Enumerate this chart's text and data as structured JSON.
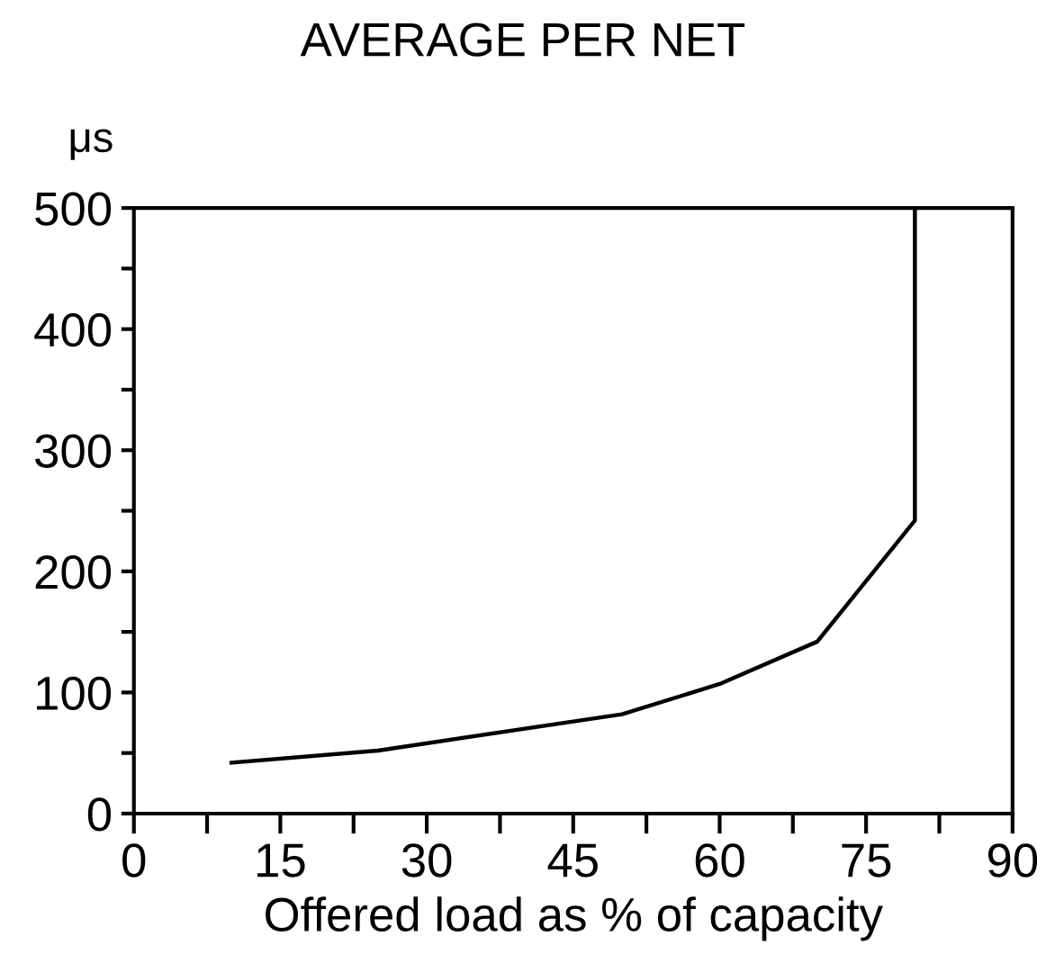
{
  "chart_data": {
    "type": "line",
    "title": "AVERAGE PER NET",
    "ylabel": "μs",
    "xlabel": "Offered load as % of capacity",
    "x": [
      10,
      25,
      50,
      60,
      70,
      80,
      80
    ],
    "series": [
      {
        "color": "#000000",
        "values": [
          42,
          52,
          82,
          107,
          142,
          242,
          500
        ]
      }
    ],
    "xlim": [
      0,
      90
    ],
    "ylim": [
      0,
      500
    ],
    "xticks": [
      0,
      {
        "value": 7.5,
        "label": null
      },
      15,
      {
        "value": 22.5,
        "label": null
      },
      30,
      {
        "value": 37.5,
        "label": null
      },
      45,
      {
        "value": 52.5,
        "label": null
      },
      60,
      {
        "value": 67.5,
        "label": null
      },
      75,
      {
        "value": 82.5,
        "label": null
      },
      90
    ],
    "yticks": [
      0,
      {
        "value": 50,
        "label": null
      },
      100,
      {
        "value": 150,
        "label": null
      },
      200,
      {
        "value": 250,
        "label": null
      },
      300,
      {
        "value": 350,
        "label": null
      },
      400,
      {
        "value": 450,
        "label": null
      },
      500
    ],
    "grid": false,
    "legend": false,
    "marker": "none",
    "line_style": "solid"
  }
}
